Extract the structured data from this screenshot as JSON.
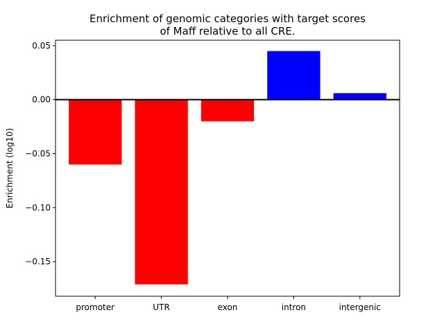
{
  "chart_data": {
    "type": "bar",
    "title_lines": [
      "Enrichment of genomic categories with target scores",
      "of Maff relative to all CRE."
    ],
    "xlabel": "",
    "ylabel": "Enrichment (log10)",
    "categories": [
      "promoter",
      "UTR",
      "exon",
      "intron",
      "intergenic"
    ],
    "values": [
      -0.06,
      -0.171,
      -0.02,
      0.045,
      0.006
    ],
    "bar_colors": [
      "#ff0000",
      "#ff0000",
      "#ff0000",
      "#0000ff",
      "#0000ff"
    ],
    "ylim": [
      -0.182,
      0.055
    ],
    "yticks": [
      0.05,
      0.0,
      -0.05,
      -0.1,
      -0.15
    ],
    "ytick_labels": [
      "0.05",
      "0.00",
      "−0.05",
      "−0.10",
      "−0.15"
    ],
    "zero_line": true,
    "grid": false,
    "legend": "none"
  }
}
